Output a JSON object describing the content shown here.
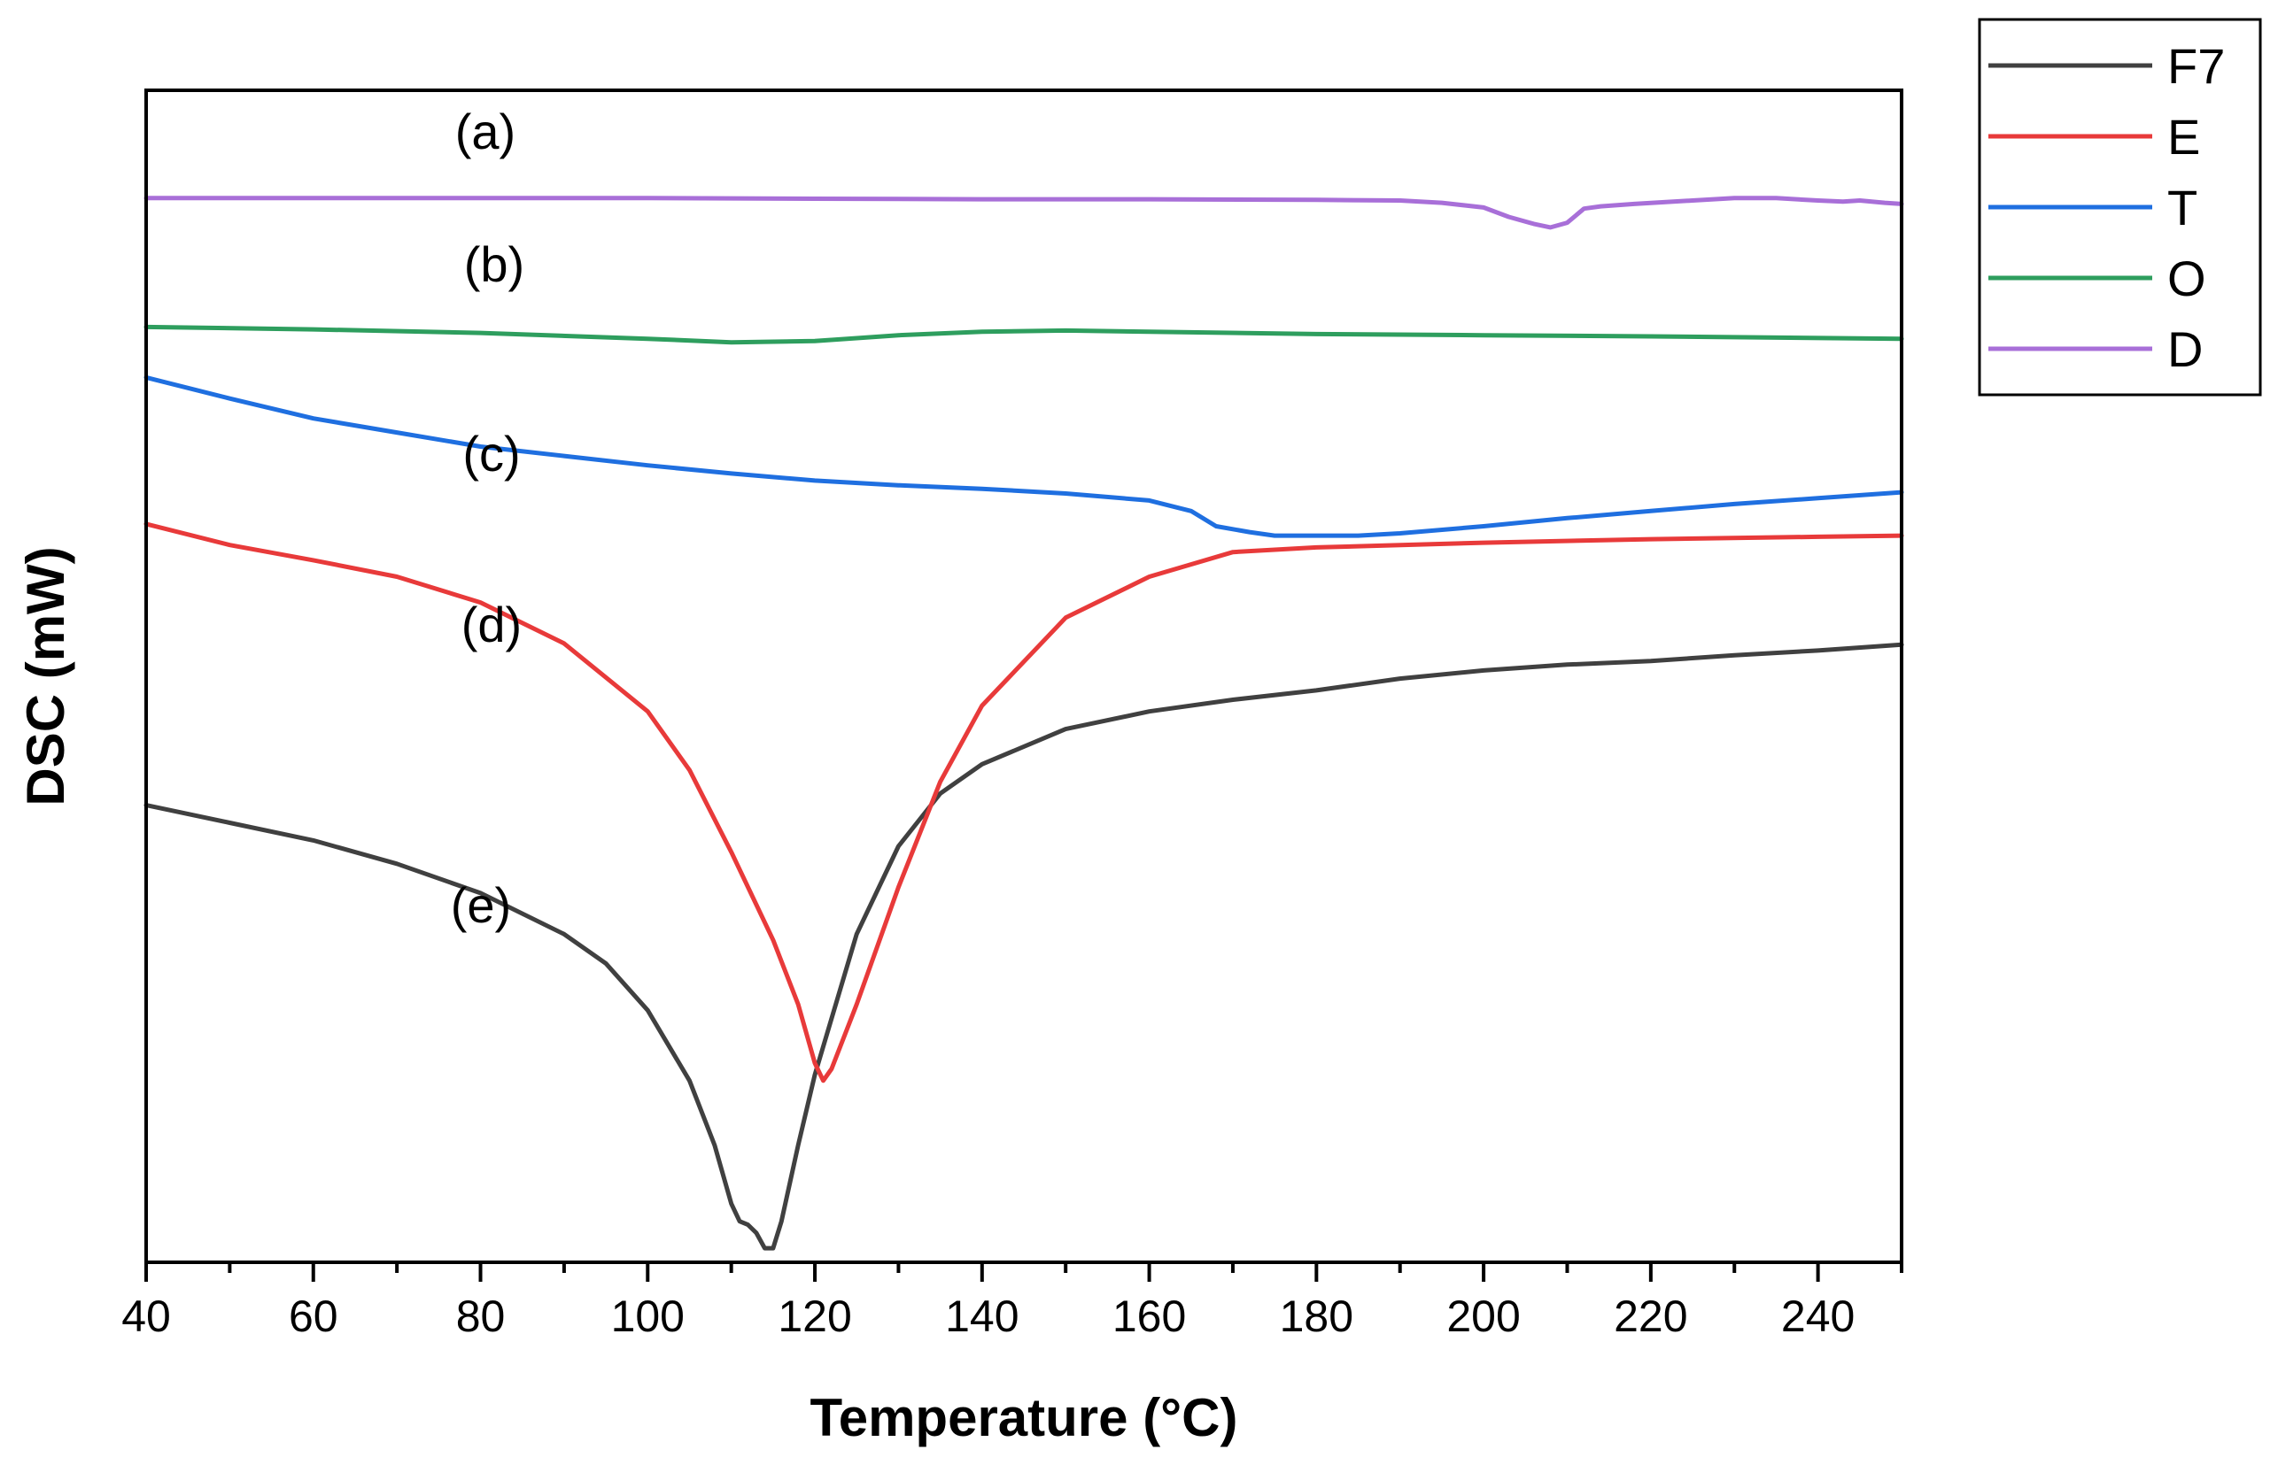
{
  "chart_data": {
    "type": "line",
    "xlabel": "Temperature (°C)",
    "ylabel": "DSC (mW)",
    "xlim": [
      40,
      250
    ],
    "ylim": [
      0,
      100
    ],
    "x_ticks": [
      40,
      60,
      80,
      100,
      120,
      140,
      160,
      180,
      200,
      220,
      240
    ],
    "y_ticks_shown": false,
    "grid": false,
    "legend_position": "top-right outside",
    "series": [
      {
        "name": "F7",
        "curve_label": "(e)",
        "color": "#404040",
        "x": [
          40,
          50,
          60,
          70,
          80,
          90,
          95,
          100,
          105,
          108,
          110,
          111,
          112,
          113,
          114,
          115,
          116,
          118,
          120,
          125,
          130,
          135,
          140,
          150,
          160,
          170,
          180,
          190,
          200,
          210,
          220,
          230,
          240,
          250
        ],
        "y": [
          39,
          37.5,
          36,
          34,
          31.5,
          28,
          25.5,
          21.5,
          15.5,
          10,
          5,
          3.5,
          3.2,
          2.5,
          1.2,
          1.2,
          3.5,
          10,
          16,
          28,
          35.5,
          40,
          42.5,
          45.5,
          47,
          48,
          48.8,
          49.8,
          50.5,
          51,
          51.3,
          51.8,
          52.2,
          52.7
        ]
      },
      {
        "name": "E",
        "curve_label": "(d)",
        "color": "#e83a3a",
        "x": [
          40,
          50,
          60,
          70,
          80,
          90,
          100,
          105,
          110,
          115,
          118,
          120,
          121,
          122,
          125,
          130,
          135,
          140,
          150,
          160,
          170,
          180,
          200,
          220,
          240,
          250
        ],
        "y": [
          63,
          61.2,
          59.9,
          58.5,
          56.3,
          52.8,
          47,
          42,
          35,
          27.5,
          22,
          17,
          15.5,
          16.5,
          22,
          32,
          41,
          47.5,
          55,
          58.5,
          60.6,
          61,
          61.4,
          61.7,
          61.9,
          62
        ]
      },
      {
        "name": "T",
        "curve_label": "(c)",
        "color": "#1f6fe0",
        "x": [
          40,
          50,
          60,
          70,
          80,
          90,
          100,
          110,
          120,
          130,
          140,
          150,
          160,
          165,
          168,
          172,
          175,
          180,
          185,
          190,
          200,
          210,
          220,
          230,
          240,
          250
        ],
        "y": [
          75.5,
          73.7,
          72,
          70.8,
          69.6,
          68.8,
          68,
          67.3,
          66.7,
          66.3,
          66,
          65.6,
          65,
          64.1,
          62.8,
          62.3,
          62,
          62,
          62,
          62.2,
          62.8,
          63.5,
          64.1,
          64.7,
          65.2,
          65.7
        ]
      },
      {
        "name": "O",
        "curve_label": "(b)",
        "color": "#2e9e5e",
        "x": [
          40,
          60,
          80,
          100,
          110,
          120,
          130,
          140,
          150,
          160,
          180,
          200,
          220,
          250
        ],
        "y": [
          79.8,
          79.6,
          79.3,
          78.8,
          78.5,
          78.6,
          79.1,
          79.4,
          79.5,
          79.4,
          79.2,
          79.1,
          79,
          78.8
        ]
      },
      {
        "name": "D",
        "curve_label": "(a)",
        "color": "#a86fd8",
        "x": [
          40,
          60,
          80,
          100,
          120,
          140,
          160,
          180,
          190,
          195,
          200,
          203,
          206,
          208,
          210,
          212,
          214,
          218,
          225,
          230,
          235,
          240,
          243,
          245,
          248,
          250
        ],
        "y": [
          90.8,
          90.8,
          90.8,
          90.8,
          90.75,
          90.7,
          90.7,
          90.65,
          90.6,
          90.4,
          90,
          89.2,
          88.6,
          88.3,
          88.7,
          89.9,
          90.1,
          90.3,
          90.6,
          90.8,
          90.8,
          90.6,
          90.5,
          90.6,
          90.4,
          90.3
        ]
      }
    ]
  }
}
